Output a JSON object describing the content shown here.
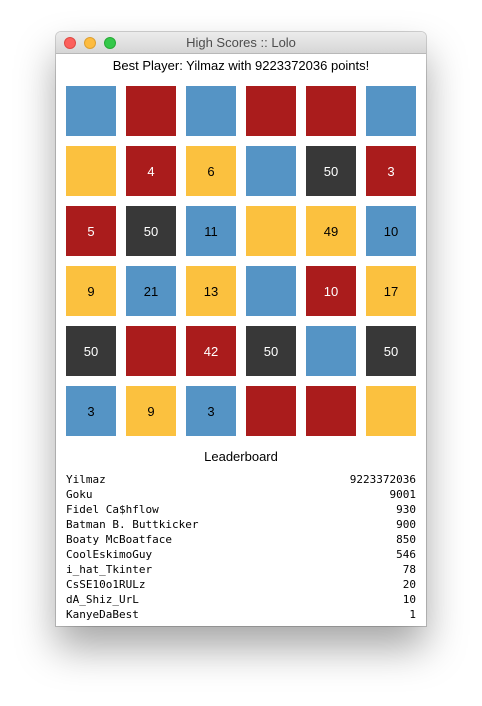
{
  "window": {
    "title": "High Scores :: Lolo"
  },
  "best_player": "Best Player: Yilmaz with 9223372036 points!",
  "colors": {
    "blue": "#5594c5",
    "red": "#aa1c1c",
    "yellow": "#fbc13f",
    "dark": "#383838"
  },
  "board": [
    [
      {
        "color": "blue",
        "value": ""
      },
      {
        "color": "red",
        "value": ""
      },
      {
        "color": "blue",
        "value": ""
      },
      {
        "color": "red",
        "value": ""
      },
      {
        "color": "red",
        "value": ""
      },
      {
        "color": "blue",
        "value": ""
      }
    ],
    [
      {
        "color": "yellow",
        "value": ""
      },
      {
        "color": "red",
        "value": "4"
      },
      {
        "color": "yellow",
        "value": "6"
      },
      {
        "color": "blue",
        "value": ""
      },
      {
        "color": "dark",
        "value": "50"
      },
      {
        "color": "red",
        "value": "3"
      }
    ],
    [
      {
        "color": "red",
        "value": "5"
      },
      {
        "color": "dark",
        "value": "50"
      },
      {
        "color": "blue",
        "value": "11"
      },
      {
        "color": "yellow",
        "value": ""
      },
      {
        "color": "yellow",
        "value": "49"
      },
      {
        "color": "blue",
        "value": "10"
      }
    ],
    [
      {
        "color": "yellow",
        "value": "9"
      },
      {
        "color": "blue",
        "value": "21"
      },
      {
        "color": "yellow",
        "value": "13"
      },
      {
        "color": "blue",
        "value": ""
      },
      {
        "color": "red",
        "value": "10"
      },
      {
        "color": "yellow",
        "value": "17"
      }
    ],
    [
      {
        "color": "dark",
        "value": "50"
      },
      {
        "color": "red",
        "value": ""
      },
      {
        "color": "red",
        "value": "42"
      },
      {
        "color": "dark",
        "value": "50"
      },
      {
        "color": "blue",
        "value": ""
      },
      {
        "color": "dark",
        "value": "50"
      }
    ],
    [
      {
        "color": "blue",
        "value": "3"
      },
      {
        "color": "yellow",
        "value": "9"
      },
      {
        "color": "blue",
        "value": "3"
      },
      {
        "color": "red",
        "value": ""
      },
      {
        "color": "red",
        "value": ""
      },
      {
        "color": "yellow",
        "value": ""
      }
    ]
  ],
  "leaderboard": {
    "title": "Leaderboard",
    "entries": [
      {
        "name": "Yilmaz",
        "score": "9223372036"
      },
      {
        "name": "Goku",
        "score": "9001"
      },
      {
        "name": "Fidel Ca$hflow",
        "score": "930"
      },
      {
        "name": "Batman B. Buttkicker",
        "score": "900"
      },
      {
        "name": "Boaty McBoatface",
        "score": "850"
      },
      {
        "name": "CoolEskimoGuy",
        "score": "546"
      },
      {
        "name": "i_hat_Tkinter",
        "score": "78"
      },
      {
        "name": "CsSE10o1RULz",
        "score": "20"
      },
      {
        "name": "dA_Shiz_UrL",
        "score": "10"
      },
      {
        "name": "KanyeDaBest",
        "score": "1"
      }
    ]
  }
}
